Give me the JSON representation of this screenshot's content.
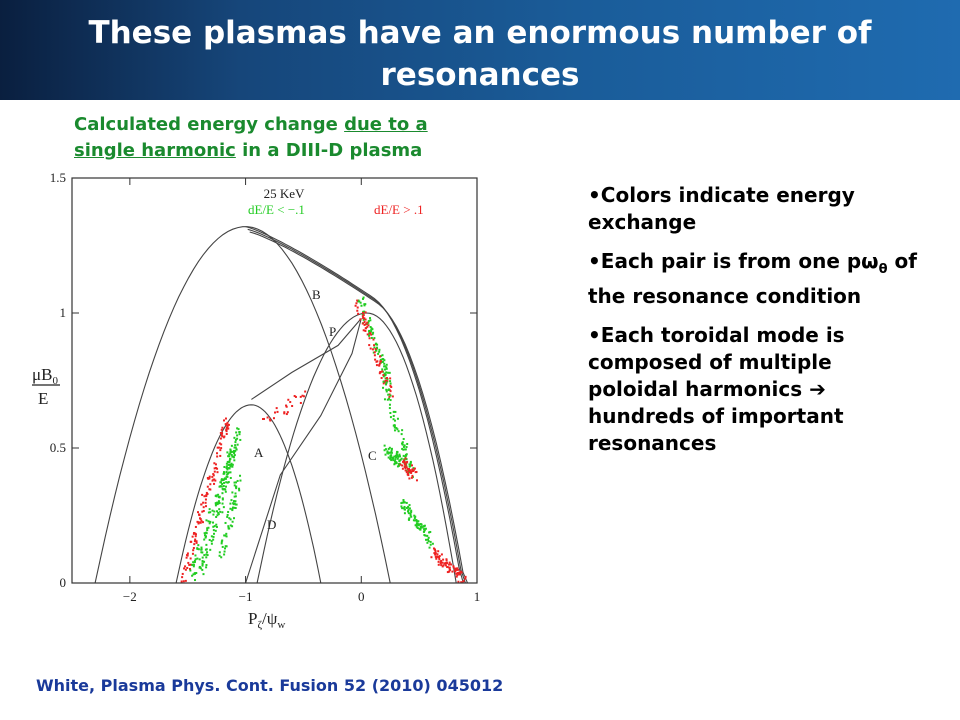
{
  "slide": {
    "title": "These plasmas have an enormous number of resonances",
    "caption_part1": "Calculated energy change ",
    "caption_underlined1": "due to a",
    "caption_underlined2": "single harmonic",
    "caption_part2": " in a DIII-D plasma",
    "bullets": [
      {
        "text": "Colors indicate energy exchange"
      },
      {
        "pre": "Each pair is from one p",
        "sym": "ω",
        "sub": "θ",
        "post": " of the resonance condition"
      },
      {
        "pre": "Each toroidal mode is composed of multiple poloidal harmonics ",
        "arrow": "➔",
        "post": " hundreds of important resonances"
      }
    ],
    "citation": "White, Plasma Phys. Cont. Fusion 52 (2010) 045012"
  },
  "chart_data": {
    "type": "scatter",
    "annotation_energy": "25 KeV",
    "legend": [
      {
        "label": "dE/E < −.1",
        "color": "#22cc22"
      },
      {
        "label": "dE/E > .1",
        "color": "#ee2222"
      }
    ],
    "ylabel_num": "μB",
    "ylabel_sub": "0",
    "ylabel_den": "E",
    "xlabel_main": "P",
    "xlabel_sub1": "ζ",
    "xlabel_mid": "/ψ",
    "xlabel_sub2": "w",
    "x_ticks": [
      "−2",
      "−1",
      "0",
      "1"
    ],
    "y_ticks": [
      "0",
      "0.5",
      "1",
      "1.5"
    ],
    "xlim": [
      -2.5,
      1.0
    ],
    "ylim": [
      0,
      1.5
    ],
    "region_labels": [
      "A",
      "B",
      "C",
      "D",
      "P"
    ],
    "colors": {
      "green": "#22cc22",
      "red": "#ee2222",
      "curve": "#444444"
    }
  }
}
